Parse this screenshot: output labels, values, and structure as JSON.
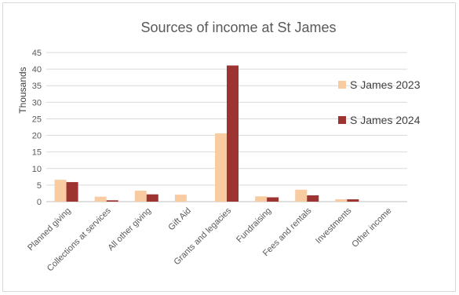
{
  "chart_data": {
    "type": "bar",
    "title": "Sources of income at St James",
    "xlabel": "",
    "ylabel": "Thousands",
    "ylim": [
      0,
      45
    ],
    "yticks": [
      0,
      5,
      10,
      15,
      20,
      25,
      30,
      35,
      40,
      45
    ],
    "grid": true,
    "legend_position": "right",
    "categories": [
      "Planned giving",
      "Collections at services",
      "All other giving",
      "Gift Aid",
      "Grants and legacies",
      "Fundraising",
      "Fees and rentals",
      "Investments",
      "Other income"
    ],
    "series": [
      {
        "name": "S James 2023",
        "color": "#f8cba1",
        "values": [
          6.6,
          1.5,
          3.3,
          2.1,
          20.6,
          1.6,
          3.6,
          0.7,
          0
        ]
      },
      {
        "name": "S James 2024",
        "color": "#9e3431",
        "values": [
          5.9,
          0.4,
          2.2,
          0,
          41.1,
          1.3,
          1.9,
          0.7,
          0
        ]
      }
    ]
  }
}
